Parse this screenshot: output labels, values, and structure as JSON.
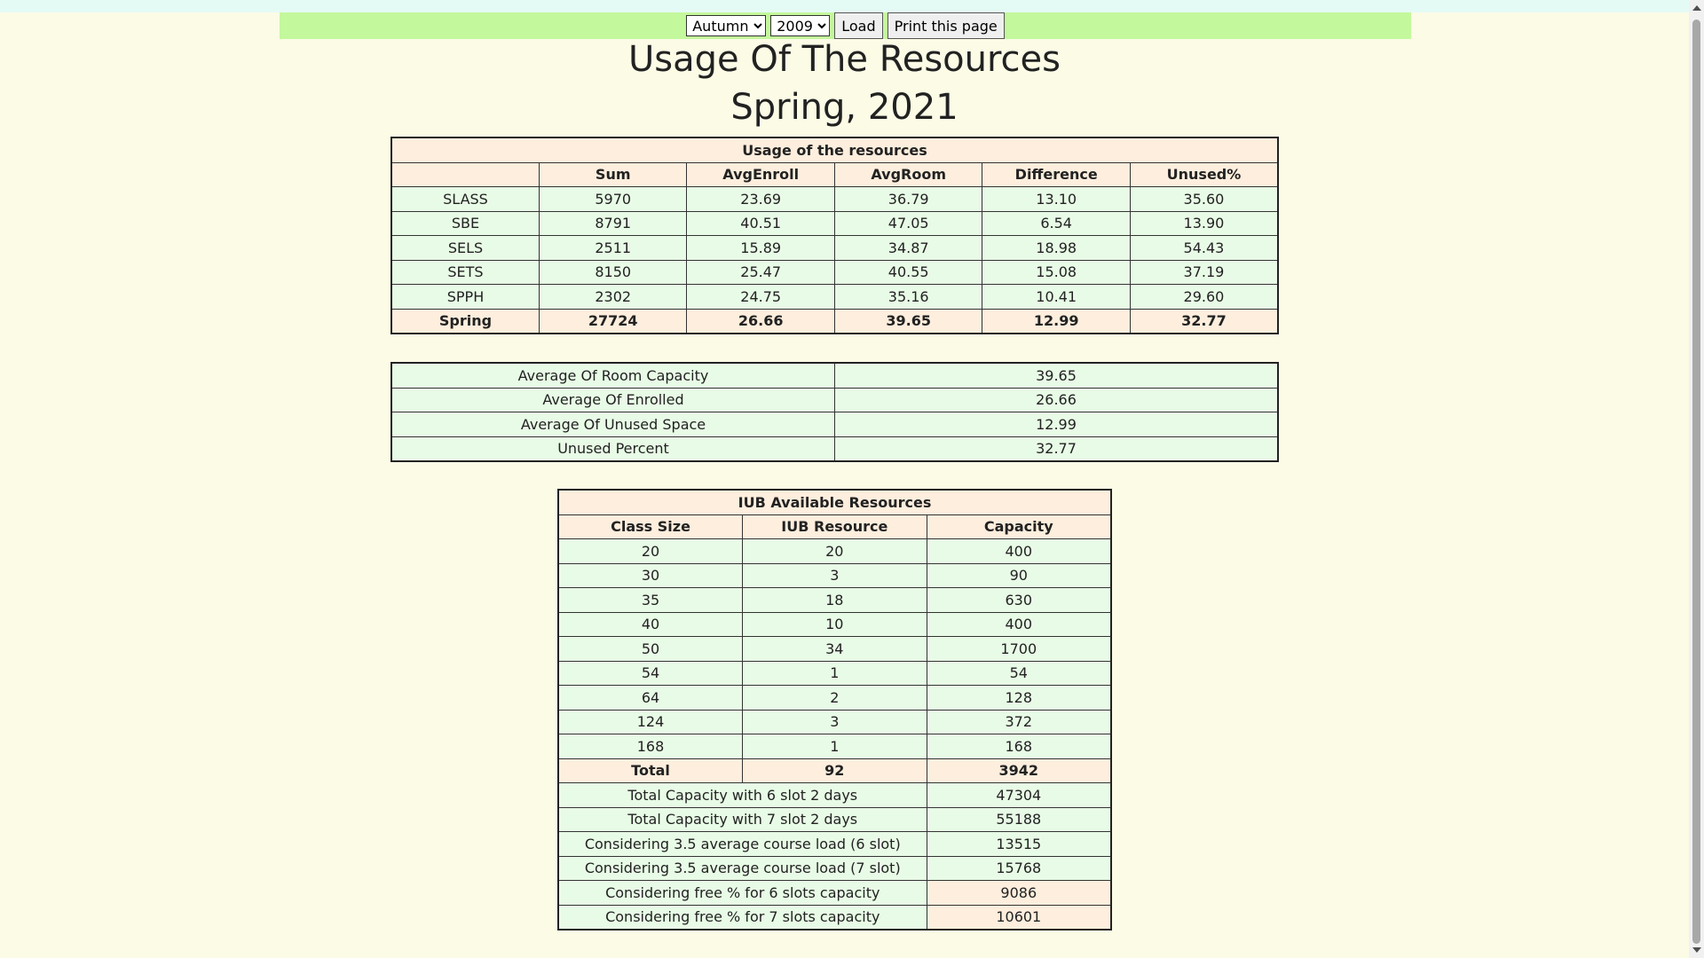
{
  "toolbar": {
    "semester_selected": "Autumn",
    "year_selected": "2009",
    "load_label": "Load",
    "print_label": "Print this page"
  },
  "page": {
    "title": "Usage Of The Resources",
    "subtitle": "Spring, 2021"
  },
  "usage": {
    "caption": "Usage of the resources",
    "headers": [
      "",
      "Sum",
      "AvgEnroll",
      "AvgRoom",
      "Difference",
      "Unused%"
    ],
    "rows": [
      [
        "SLASS",
        "5970",
        "23.69",
        "36.79",
        "13.10",
        "35.60"
      ],
      [
        "SBE",
        "8791",
        "40.51",
        "47.05",
        "6.54",
        "13.90"
      ],
      [
        "SELS",
        "2511",
        "15.89",
        "34.87",
        "18.98",
        "54.43"
      ],
      [
        "SETS",
        "8150",
        "25.47",
        "40.55",
        "15.08",
        "37.19"
      ],
      [
        "SPPH",
        "2302",
        "24.75",
        "35.16",
        "10.41",
        "29.60"
      ]
    ],
    "total": [
      "Spring",
      "27724",
      "26.66",
      "39.65",
      "12.99",
      "32.77"
    ]
  },
  "averages": [
    [
      "Average Of Room Capacity",
      "39.65"
    ],
    [
      "Average Of Enrolled",
      "26.66"
    ],
    [
      "Average Of Unused Space",
      "12.99"
    ],
    [
      "Unused Percent",
      "32.77"
    ]
  ],
  "resources": {
    "caption": "IUB Available Resources",
    "headers": [
      "Class Size",
      "IUB Resource",
      "Capacity"
    ],
    "rows": [
      [
        "20",
        "20",
        "400"
      ],
      [
        "30",
        "3",
        "90"
      ],
      [
        "35",
        "18",
        "630"
      ],
      [
        "40",
        "10",
        "400"
      ],
      [
        "50",
        "34",
        "1700"
      ],
      [
        "54",
        "1",
        "54"
      ],
      [
        "64",
        "2",
        "128"
      ],
      [
        "124",
        "3",
        "372"
      ],
      [
        "168",
        "1",
        "168"
      ]
    ],
    "total": [
      "Total",
      "92",
      "3942"
    ],
    "extra": [
      [
        "Total Capacity with 6 slot 2 days",
        "47304"
      ],
      [
        "Total Capacity with 7 slot 2 days",
        "55188"
      ],
      [
        "Considering 3.5 average course load (6 slot)",
        "13515"
      ],
      [
        "Considering 3.5 average course load (7 slot)",
        "15768"
      ],
      [
        "Considering free % for 6 slots capacity",
        "9086"
      ],
      [
        "Considering free % for 7 slots capacity",
        "10601"
      ]
    ]
  }
}
